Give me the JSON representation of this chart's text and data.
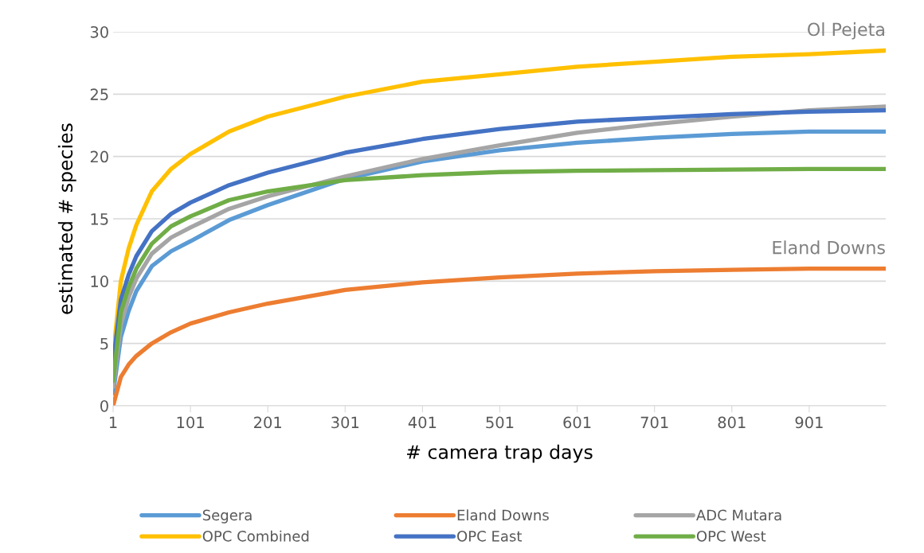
{
  "chart_data": {
    "type": "line",
    "xlabel": "# camera trap days",
    "ylabel": "estimated # species",
    "x": [
      1,
      11,
      21,
      31,
      51,
      76,
      101,
      151,
      201,
      301,
      401,
      501,
      601,
      701,
      801,
      901,
      1000
    ],
    "xlim": [
      1,
      1000
    ],
    "xticks": [
      1,
      101,
      201,
      301,
      401,
      501,
      601,
      701,
      801,
      901
    ],
    "ylim": [
      0,
      30
    ],
    "yticks": [
      0,
      5,
      10,
      15,
      20,
      25,
      30
    ],
    "grid": "y",
    "legend": "bottom",
    "marker": "none",
    "line_style": "solid",
    "series": [
      {
        "name": "Segera",
        "color": "#5b9bd5",
        "values": [
          1,
          5.5,
          7.6,
          9.2,
          11.2,
          12.4,
          13.2,
          14.9,
          16.1,
          18.2,
          19.6,
          20.5,
          21.1,
          21.5,
          21.8,
          22.0,
          22.0
        ]
      },
      {
        "name": "Eland Downs",
        "color": "#ed7d31",
        "values": [
          0,
          2.3,
          3.3,
          4.0,
          5.0,
          5.9,
          6.6,
          7.5,
          8.2,
          9.3,
          9.9,
          10.3,
          10.6,
          10.8,
          10.9,
          11.0,
          11.0
        ]
      },
      {
        "name": "ADC Mutara",
        "color": "#a5a5a5",
        "values": [
          1.5,
          6.5,
          8.7,
          10.2,
          12.2,
          13.5,
          14.3,
          15.8,
          16.8,
          18.4,
          19.8,
          20.9,
          21.9,
          22.6,
          23.2,
          23.7,
          24.0
        ]
      },
      {
        "name": "OPC Combined",
        "color": "#ffc000",
        "values": [
          4,
          10,
          12.6,
          14.5,
          17.2,
          19.0,
          20.2,
          22.0,
          23.2,
          24.8,
          26.0,
          26.6,
          27.2,
          27.6,
          28.0,
          28.2,
          28.5
        ]
      },
      {
        "name": "OPC East",
        "color": "#4472c4",
        "values": [
          3.5,
          8.5,
          10.5,
          12.0,
          14.0,
          15.4,
          16.3,
          17.7,
          18.7,
          20.3,
          21.4,
          22.2,
          22.8,
          23.1,
          23.4,
          23.6,
          23.7
        ]
      },
      {
        "name": "OPC West",
        "color": "#70ad47",
        "values": [
          2,
          7.5,
          9.5,
          11.0,
          13.0,
          14.4,
          15.2,
          16.5,
          17.2,
          18.1,
          18.5,
          18.75,
          18.85,
          18.9,
          18.95,
          19.0,
          19.0
        ]
      }
    ],
    "annotations": [
      {
        "text": "Ol Pejeta",
        "x": 1000,
        "y": 28.5
      },
      {
        "text": "Eland Downs",
        "x": 1000,
        "y": 11.0
      }
    ]
  }
}
